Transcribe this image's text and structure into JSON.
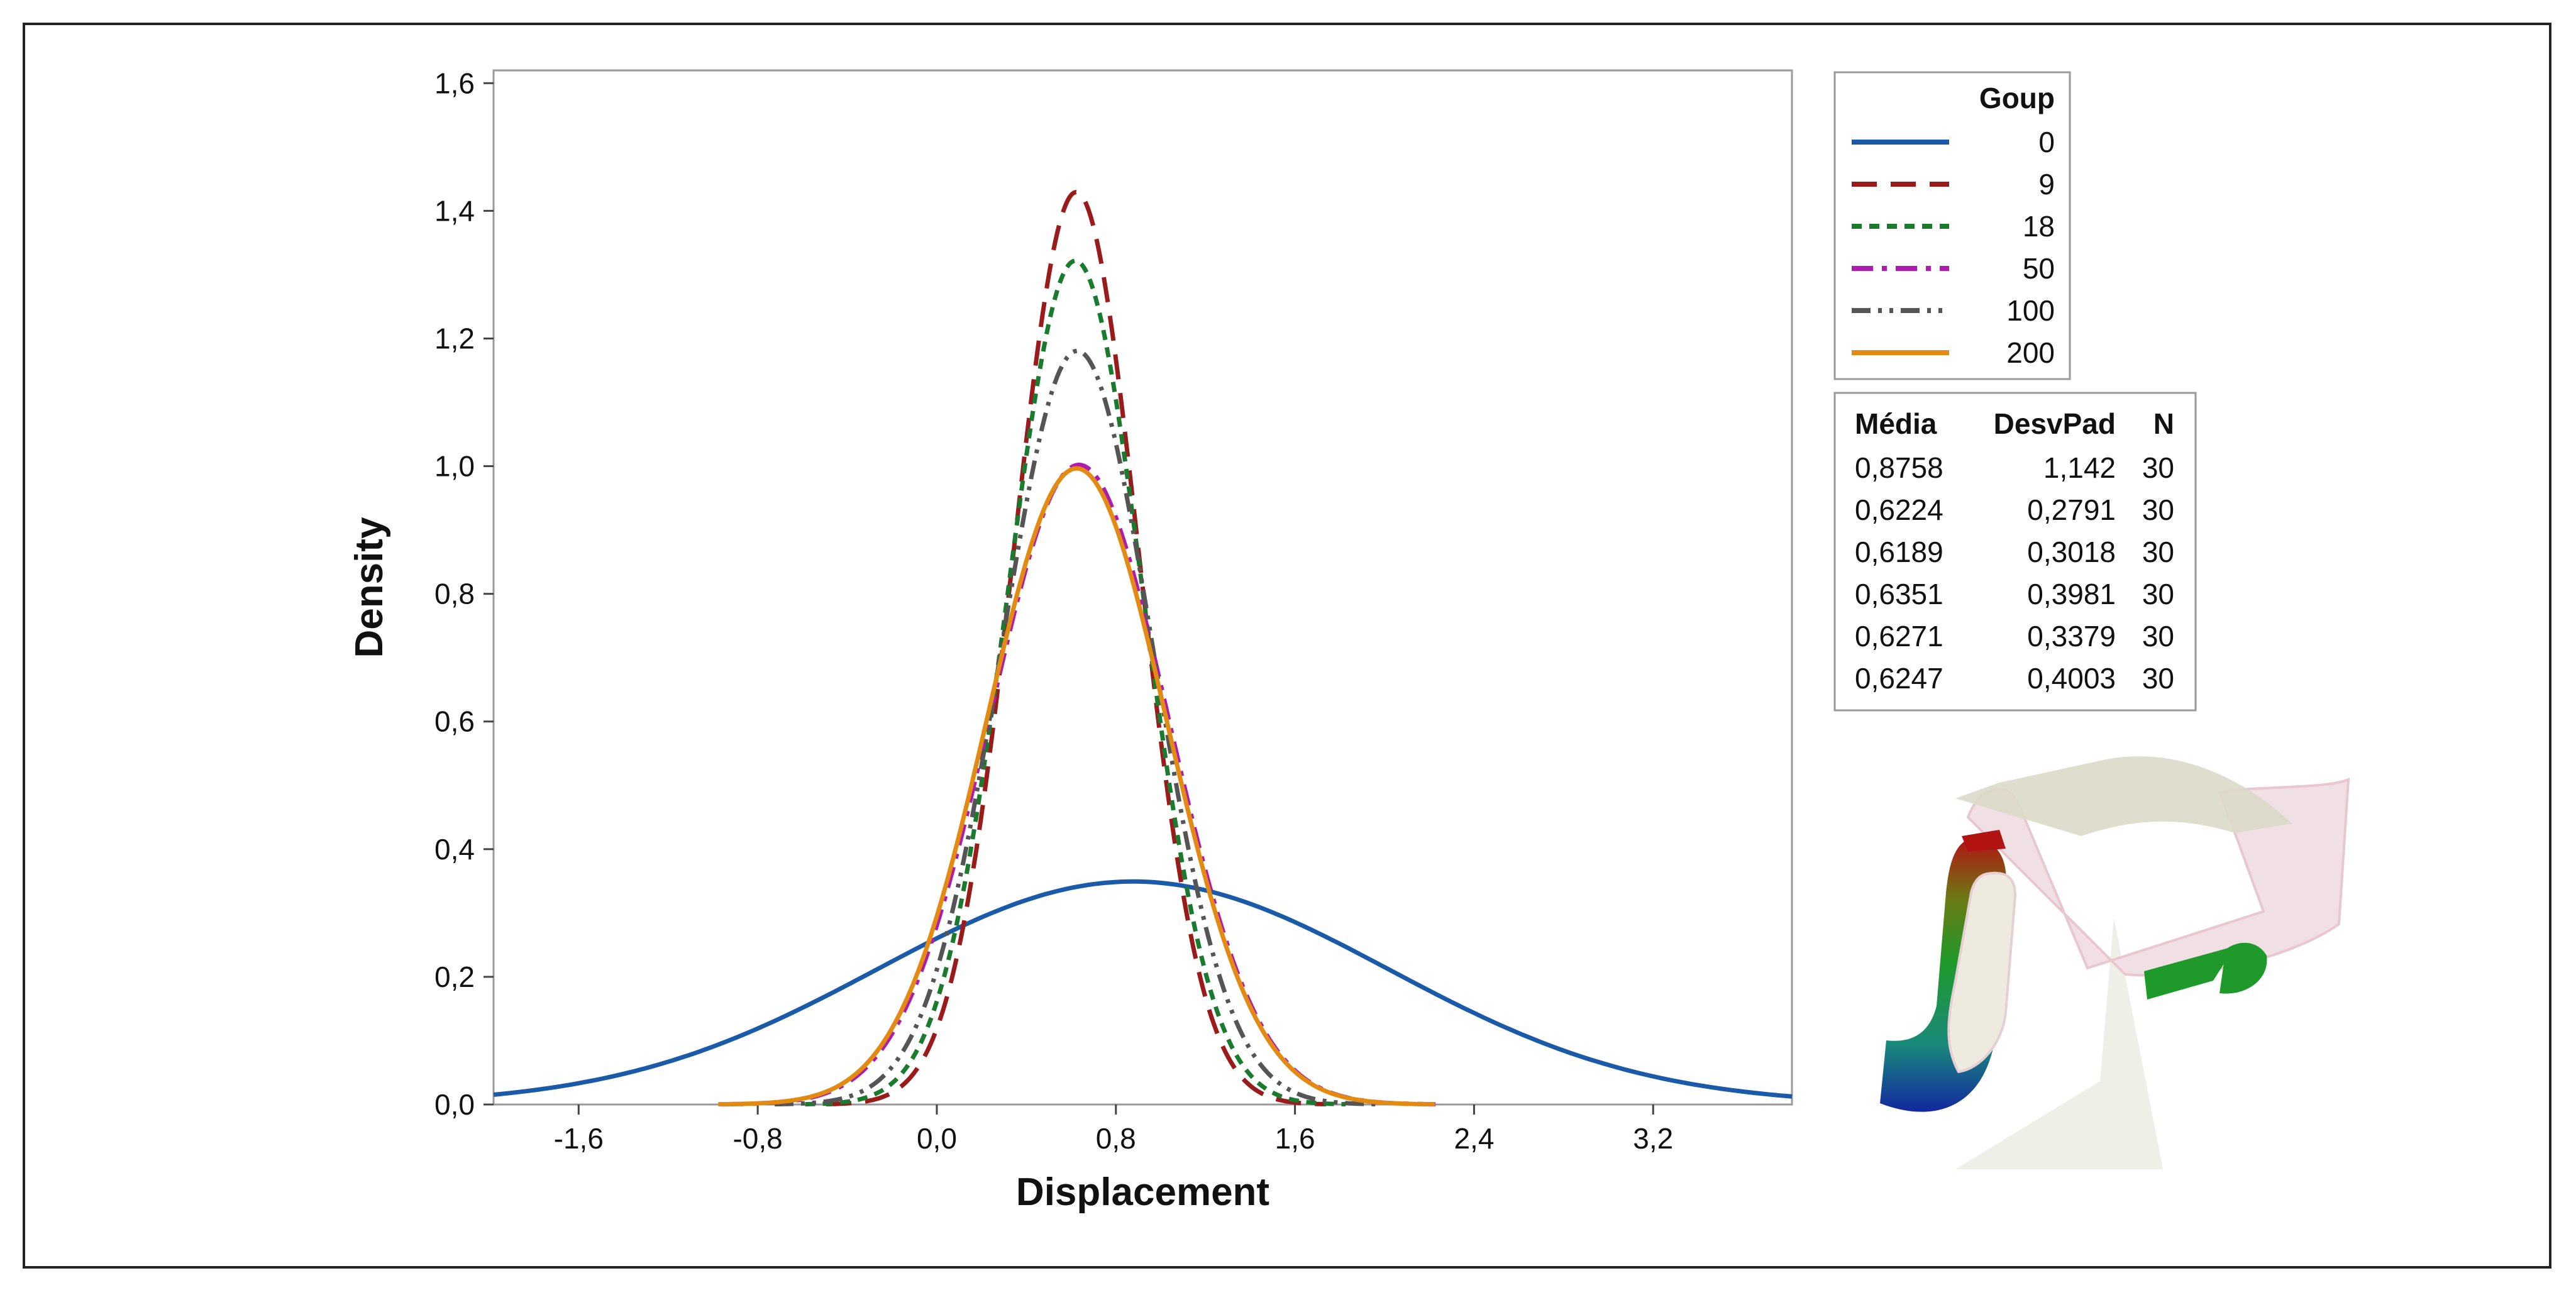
{
  "chart_data": {
    "type": "line",
    "title": "",
    "xlabel": "Displacement",
    "ylabel": "Density",
    "xlim": [
      -1.98,
      3.82
    ],
    "ylim": [
      0,
      1.62
    ],
    "xticks": [
      -1.6,
      -0.8,
      0.0,
      0.8,
      1.6,
      2.4,
      3.2
    ],
    "xtick_labels": [
      "-1,6",
      "-0,8",
      "0,0",
      "0,8",
      "1,6",
      "2,4",
      "3,2"
    ],
    "yticks": [
      0.0,
      0.2,
      0.4,
      0.6,
      0.8,
      1.0,
      1.2,
      1.4,
      1.6
    ],
    "ytick_labels": [
      "0,0",
      "0,2",
      "0,4",
      "0,6",
      "0,8",
      "1,0",
      "1,2",
      "1,4",
      "1,6"
    ],
    "legend": {
      "title": "Goup",
      "stats_headers": [
        "Média",
        "DesvPad",
        "N"
      ],
      "position": "right"
    },
    "series": [
      {
        "name": "0",
        "mean": 0.8758,
        "sd": 1.142,
        "n": 30,
        "mean_label": "0,8758",
        "sd_label": "1,142",
        "n_label": "30",
        "color": "#1a5aa8",
        "style": "solid"
      },
      {
        "name": "9",
        "mean": 0.6224,
        "sd": 0.2791,
        "n": 30,
        "mean_label": "0,6224",
        "sd_label": "0,2791",
        "n_label": "30",
        "color": "#9b1b1b",
        "style": "dashed"
      },
      {
        "name": "18",
        "mean": 0.6189,
        "sd": 0.3018,
        "n": 30,
        "mean_label": "0,6189",
        "sd_label": "0,3018",
        "n_label": "30",
        "color": "#1a7a2e",
        "style": "dotted"
      },
      {
        "name": "50",
        "mean": 0.6351,
        "sd": 0.3981,
        "n": 30,
        "mean_label": "0,6351",
        "sd_label": "0,3981",
        "n_label": "30",
        "color": "#b01ab0",
        "style": "dashdot"
      },
      {
        "name": "100",
        "mean": 0.6271,
        "sd": 0.3379,
        "n": 30,
        "mean_label": "0,6271",
        "sd_label": "0,3379",
        "n_label": "30",
        "color": "#555555",
        "style": "dashdotdot"
      },
      {
        "name": "200",
        "mean": 0.6247,
        "sd": 0.4003,
        "n": 30,
        "mean_label": "0,6247",
        "sd_label": "0,4003",
        "n_label": "30",
        "color": "#e38a12",
        "style": "solid"
      }
    ]
  }
}
